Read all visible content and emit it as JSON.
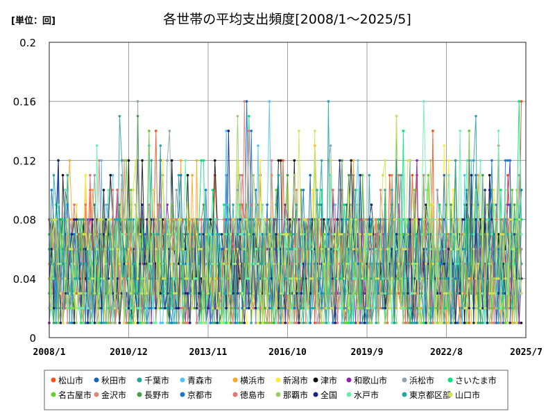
{
  "unit_label": "[単位：回]",
  "chart_data": {
    "type": "line",
    "title": "各世帯の平均支出頻度[2008/1～2025/5]",
    "xlabel": "",
    "ylabel": "",
    "x_range": [
      "2008/1",
      "2025/7"
    ],
    "x_ticks": [
      "2008/1",
      "2010/12",
      "2013/11",
      "2016/10",
      "2019/9",
      "2022/8",
      "2025/7"
    ],
    "ylim": [
      0,
      0.2
    ],
    "y_ticks": [
      {
        "value": 0,
        "label": "0"
      },
      {
        "value": 0.04,
        "label": "0.04"
      },
      {
        "value": 0.08,
        "label": "0.08"
      },
      {
        "value": 0.12,
        "label": "0.12"
      },
      {
        "value": 0.16,
        "label": "0.16"
      },
      {
        "value": 0.2,
        "label": "0.2"
      }
    ],
    "grid": true,
    "legend_position": "bottom",
    "series": [
      {
        "name": "松山市",
        "color": "#f4511e",
        "last_value": 0.16
      },
      {
        "name": "秋田市",
        "color": "#1565c0",
        "last_value": 0.1
      },
      {
        "name": "千葉市",
        "color": "#26a69a",
        "last_value": 0.08
      },
      {
        "name": "青森市",
        "color": "#4fc3f7",
        "last_value": 0.06
      },
      {
        "name": "横浜市",
        "color": "#f9a825",
        "last_value": 0.05
      },
      {
        "name": "新潟市",
        "color": "#ffeb3b",
        "last_value": 0.04
      },
      {
        "name": "津市",
        "color": "#111111",
        "last_value": 0.01
      },
      {
        "name": "和歌山市",
        "color": "#8e24aa",
        "last_value": 0.04
      },
      {
        "name": "浜松市",
        "color": "#90a4ae",
        "last_value": 0.03
      },
      {
        "name": "さいたま市",
        "color": "#00e676",
        "last_value": 0.08
      },
      {
        "name": "名古屋市",
        "color": "#66cc33",
        "last_value": 0.05
      },
      {
        "name": "金沢市",
        "color": "#d4897a",
        "last_value": 0.06
      },
      {
        "name": "長野市",
        "color": "#43a047",
        "last_value": 0.04
      },
      {
        "name": "京都市",
        "color": "#1976d2",
        "last_value": 0.04
      },
      {
        "name": "徳島市",
        "color": "#e57373",
        "last_value": 0.05
      },
      {
        "name": "那覇市",
        "color": "#9ccc65",
        "last_value": 0.03
      },
      {
        "name": "全国",
        "color": "#1a237e",
        "last_value": 0.04
      },
      {
        "name": "水戸市",
        "color": "#69f0ae",
        "last_value": 0.07
      },
      {
        "name": "東京都区部",
        "color": "#26a6a6",
        "last_value": 0.05
      },
      {
        "name": "山口市",
        "color": "#d4e157",
        "last_value": 0.03
      }
    ]
  }
}
